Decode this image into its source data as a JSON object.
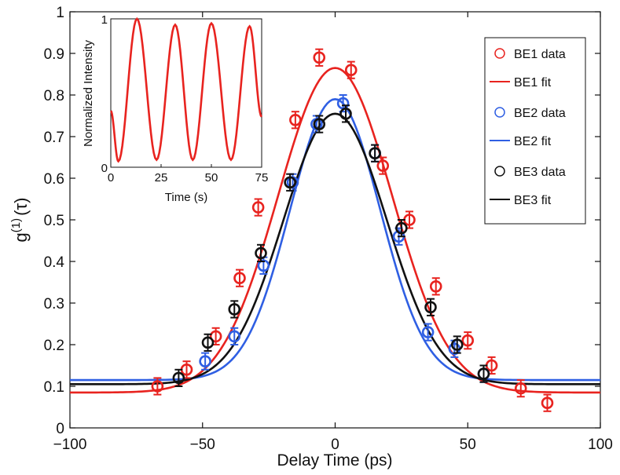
{
  "chart_data": {
    "type": "scatter",
    "title": "",
    "xlabel": "Delay Time (ps)",
    "ylabel": "g",
    "ylabel_sup": "(1)",
    "ylabel_arg": "(τ)",
    "xlim": [
      -100,
      100
    ],
    "ylim": [
      0,
      1
    ],
    "x_ticks": [
      -100,
      -50,
      0,
      50,
      100
    ],
    "x_tick_labels": [
      "−100",
      "−50",
      "0",
      "50",
      "100"
    ],
    "y_ticks": [
      0,
      0.1,
      0.2,
      0.3,
      0.4,
      0.5,
      0.6,
      0.7,
      0.8,
      0.9,
      1
    ],
    "y_tick_labels": [
      "0",
      "0.1",
      "0.2",
      "0.3",
      "0.4",
      "0.5",
      "0.6",
      "0.7",
      "0.8",
      "0.9",
      "1"
    ],
    "grid": false,
    "legend_position": "top-right",
    "series": [
      {
        "name": "BE1 data",
        "fit_name": "BE1 fit",
        "color": "#e8231f",
        "x": [
          -67,
          -56,
          -45,
          -36,
          -29,
          -15,
          -6,
          6,
          18,
          28,
          38,
          50,
          59,
          70,
          80
        ],
        "y": [
          0.1,
          0.14,
          0.22,
          0.36,
          0.53,
          0.74,
          0.89,
          0.86,
          0.63,
          0.5,
          0.34,
          0.21,
          0.15,
          0.095,
          0.06
        ],
        "err": [
          0.02,
          0.02,
          0.02,
          0.02,
          0.02,
          0.02,
          0.02,
          0.02,
          0.02,
          0.02,
          0.02,
          0.02,
          0.02,
          0.02,
          0.02
        ],
        "fit": {
          "baseline": 0.085,
          "amplitude": 0.78,
          "center": 0,
          "sigma": 21.5
        }
      },
      {
        "name": "BE2 data",
        "fit_name": "BE2 fit",
        "color": "#2f5fe3",
        "x": [
          -49,
          -38,
          -27,
          -16,
          -7,
          3,
          15,
          24,
          35,
          45,
          56
        ],
        "y": [
          0.16,
          0.22,
          0.39,
          0.59,
          0.73,
          0.78,
          0.66,
          0.46,
          0.23,
          0.19,
          0.13
        ],
        "err": [
          0.02,
          0.02,
          0.02,
          0.02,
          0.02,
          0.02,
          0.02,
          0.02,
          0.02,
          0.02,
          0.02
        ],
        "fit": {
          "baseline": 0.115,
          "amplitude": 0.675,
          "center": 0,
          "sigma": 17
        }
      },
      {
        "name": "BE3 data",
        "fit_name": "BE3 fit",
        "color": "#111111",
        "x": [
          -59,
          -48,
          -38,
          -28,
          -17,
          -6,
          4,
          15,
          25,
          36,
          46,
          56
        ],
        "y": [
          0.12,
          0.205,
          0.285,
          0.42,
          0.59,
          0.73,
          0.755,
          0.66,
          0.48,
          0.29,
          0.2,
          0.13
        ],
        "err": [
          0.02,
          0.02,
          0.02,
          0.02,
          0.02,
          0.02,
          0.02,
          0.02,
          0.02,
          0.02,
          0.02,
          0.02
        ],
        "fit": {
          "baseline": 0.105,
          "amplitude": 0.65,
          "center": 0,
          "sigma": 19.5
        }
      }
    ],
    "inset": {
      "type": "line",
      "xlabel": "Time (s)",
      "ylabel": "Normalized Intensity",
      "xlim": [
        0,
        75
      ],
      "ylim": [
        0,
        1
      ],
      "x_ticks": [
        0,
        25,
        50,
        75
      ],
      "x_tick_labels": [
        "0",
        "25",
        "50",
        "75"
      ],
      "y_ticks": [
        0,
        1
      ],
      "y_tick_labels": [
        "0",
        "1"
      ],
      "color": "#e8231f",
      "period": 18.5,
      "peak_times": [
        13,
        32,
        50,
        69
      ],
      "peak_values": [
        1.0,
        0.96,
        0.97,
        0.95
      ],
      "trough_values": [
        0.04,
        0.05,
        0.05,
        0.05
      ],
      "start_value": 0.38,
      "end_value": 0.34
    }
  }
}
